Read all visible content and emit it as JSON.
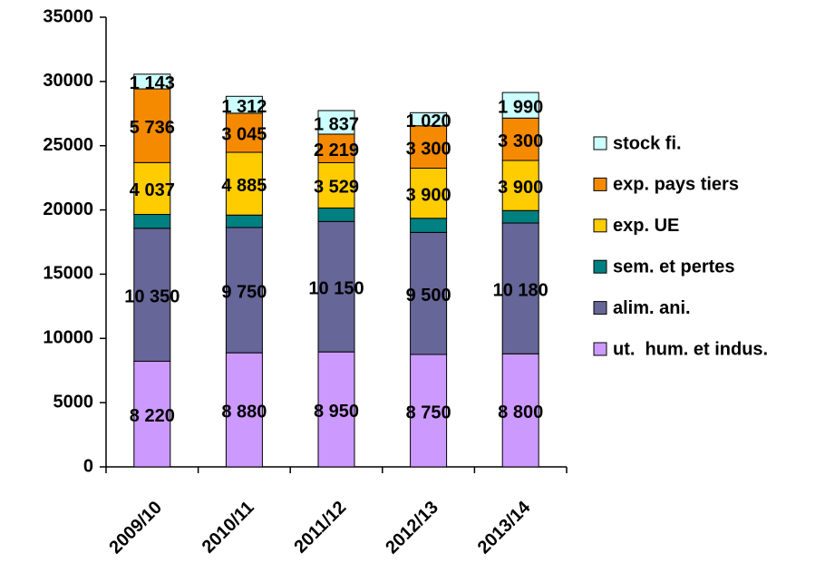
{
  "chart_data": {
    "type": "bar",
    "stacked": true,
    "categories": [
      "2009/10",
      "2010/11",
      "2011/12",
      "2012/13",
      "2013/14"
    ],
    "series": [
      {
        "name": "ut.  hum. et indus.",
        "color": "#cc99ff",
        "values": [
          8220,
          8880,
          8950,
          8750,
          8800
        ],
        "value_labels": [
          "8 220",
          "8 880",
          "8 950",
          "8 750",
          "8 800"
        ]
      },
      {
        "name": "alim. ani.",
        "color": "#666699",
        "values": [
          10350,
          9750,
          10150,
          9500,
          10180
        ],
        "value_labels": [
          "10 350",
          "9 750",
          "10 150",
          "9 500",
          "10 180"
        ]
      },
      {
        "name": "sem. et pertes",
        "color": "#008080",
        "values": [
          1080,
          970,
          1050,
          1100,
          970
        ]
      },
      {
        "name": "exp. UE",
        "color": "#ffcc00",
        "values": [
          4037,
          4885,
          3529,
          3900,
          3900
        ],
        "value_labels": [
          "4 037",
          "4 885",
          "3 529",
          "3 900",
          "3 900"
        ]
      },
      {
        "name": "exp. pays tiers",
        "color": "#f58a00",
        "values": [
          5736,
          3045,
          2219,
          3300,
          3300
        ],
        "value_labels": [
          "5 736",
          "3 045",
          "2 219",
          "3 300",
          "3 300"
        ]
      },
      {
        "name": "stock fi.",
        "color": "#ccffff",
        "values": [
          1143,
          1312,
          1837,
          1020,
          1990
        ],
        "value_labels": [
          "1 143",
          "1 312",
          "1 837",
          "1 020",
          "1 990"
        ]
      }
    ],
    "ylim": [
      0,
      35000
    ],
    "yticks": [
      0,
      5000,
      10000,
      15000,
      20000,
      25000,
      30000,
      35000
    ],
    "grid": false,
    "legend": "right"
  }
}
